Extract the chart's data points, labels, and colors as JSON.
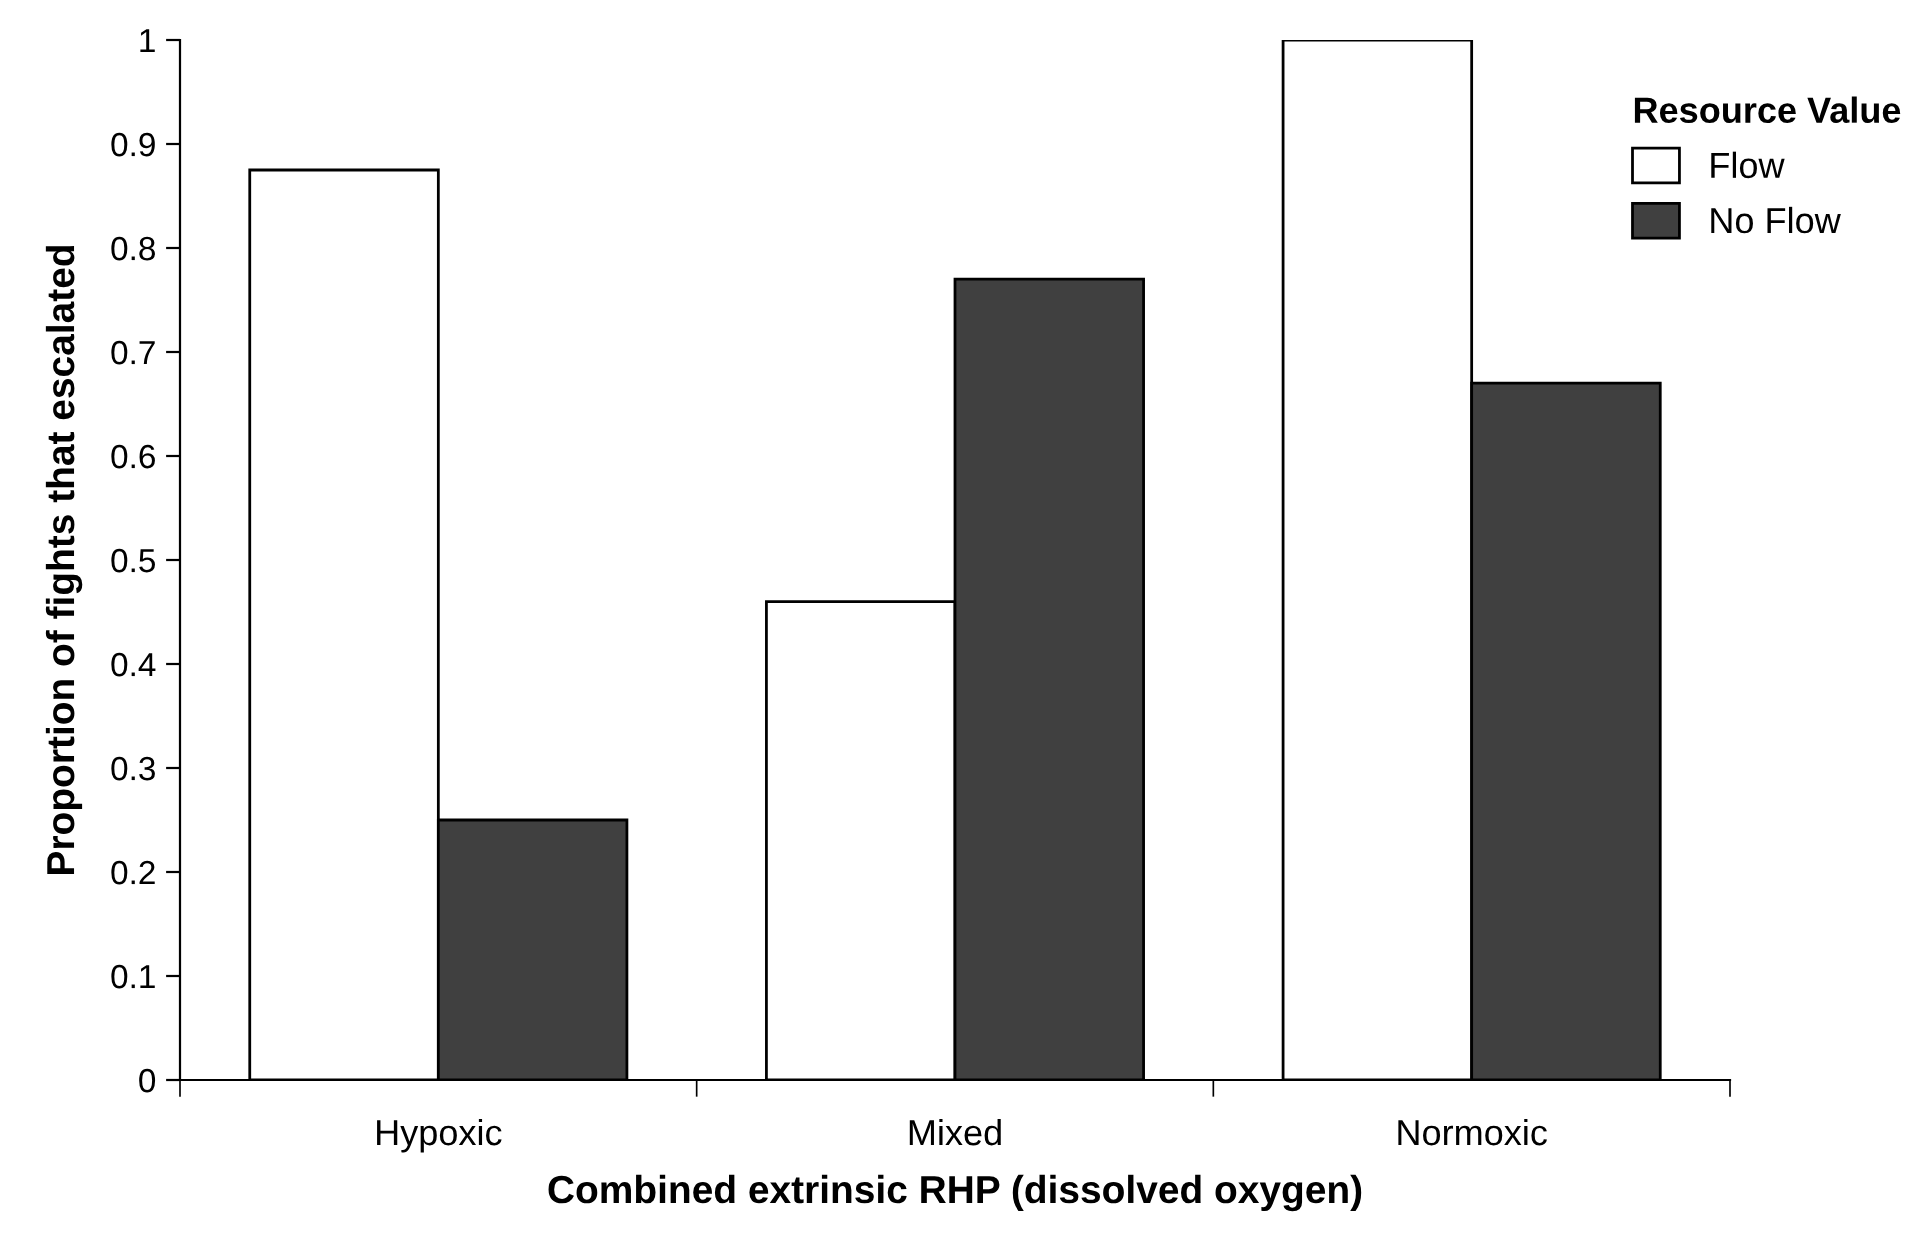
{
  "chart_data": {
    "type": "bar",
    "xlabel": "Combined extrinsic RHP (dissolved oxygen)",
    "ylabel": "Proportion of fights that escalated",
    "legend_title": "Resource Value",
    "categories": [
      "Hypoxic",
      "Mixed",
      "Normoxic"
    ],
    "series": [
      {
        "name": "Flow",
        "color": "#ffffff",
        "values": [
          0.875,
          0.46,
          1.0
        ]
      },
      {
        "name": "No Flow",
        "color": "#404040",
        "values": [
          0.25,
          0.77,
          0.67
        ]
      }
    ],
    "ylim": [
      0,
      1
    ],
    "yticks": [
      0,
      0.1,
      0.2,
      0.3,
      0.4,
      0.5,
      0.6,
      0.7,
      0.8,
      0.9,
      1
    ],
    "grid": false,
    "legend": "top right"
  }
}
